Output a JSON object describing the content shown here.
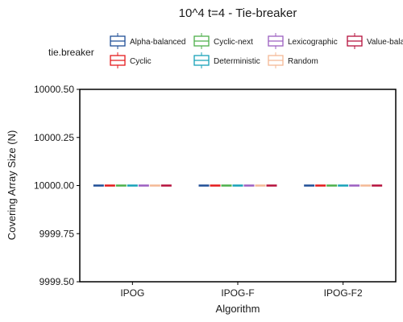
{
  "chart_data": {
    "type": "box",
    "title": "10^4 t=4 - Tie-breaker",
    "xlabel": "Algorithm",
    "ylabel": "Covering Array Size (N)",
    "categories": [
      "IPOG",
      "IPOG-F",
      "IPOG-F2"
    ],
    "ylim": [
      9999.5,
      10000.5
    ],
    "yticks": [
      "9999.50",
      "9999.75",
      "10000.00",
      "10000.25",
      "10000.50"
    ],
    "ytick_values": [
      9999.5,
      9999.75,
      10000.0,
      10000.25,
      10000.5
    ],
    "grid": false,
    "legend_position": "top",
    "legend_title": "tie.breaker",
    "series": [
      {
        "name": "Alpha-balanced",
        "color": "#1f4e96",
        "values": [
          10000,
          10000,
          10000
        ]
      },
      {
        "name": "Cyclic",
        "color": "#e41a1c",
        "values": [
          10000,
          10000,
          10000
        ]
      },
      {
        "name": "Cyclic-next",
        "color": "#4daf4a",
        "values": [
          10000,
          10000,
          10000
        ]
      },
      {
        "name": "Deterministic",
        "color": "#17a2b8",
        "values": [
          10000,
          10000,
          10000
        ]
      },
      {
        "name": "Lexicographic",
        "color": "#9c5fc0",
        "values": [
          10000,
          10000,
          10000
        ]
      },
      {
        "name": "Random",
        "color": "#f4b895",
        "values": [
          10000,
          10000,
          10000
        ]
      },
      {
        "name": "Value-balanced",
        "color": "#b5103c",
        "values": [
          10000,
          10000,
          10000
        ]
      }
    ]
  }
}
